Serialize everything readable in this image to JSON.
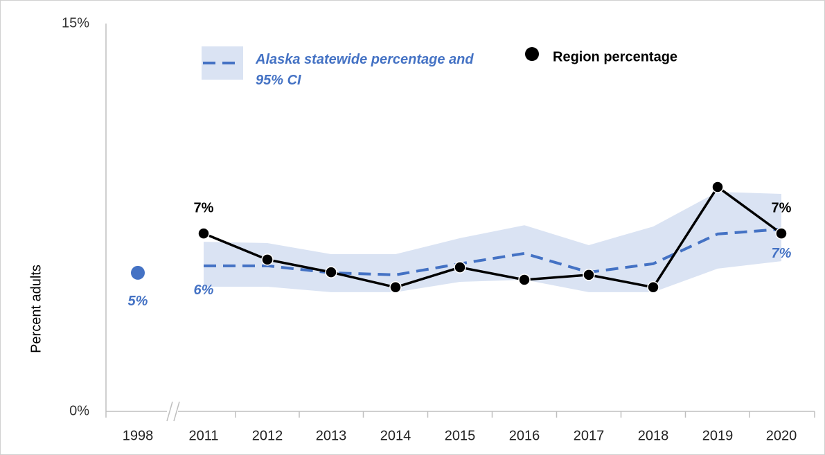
{
  "chart_data": {
    "type": "line",
    "y_axis_label": "Percent adults",
    "categories": [
      "1998",
      "2011",
      "2012",
      "2013",
      "2014",
      "2015",
      "2016",
      "2017",
      "2018",
      "2019",
      "2020"
    ],
    "ylim": [
      0,
      15
    ],
    "yticks": [
      {
        "value": 0,
        "label": "0%"
      },
      {
        "value": 15,
        "label": "15%"
      }
    ],
    "axis_break": true,
    "baseline": {
      "value": 5.36,
      "value_label": "5%",
      "color": "#4472c4"
    },
    "series": [
      {
        "name": "Region percentage",
        "color": "#000000",
        "values": [
          null,
          6.88,
          5.87,
          5.38,
          4.8,
          5.57,
          5.09,
          5.28,
          4.8,
          8.68,
          6.88
        ],
        "value_labels": [
          null,
          "7%",
          null,
          null,
          null,
          null,
          null,
          null,
          null,
          null,
          "7%"
        ]
      },
      {
        "name": "Alaska statewide percentage and 95% CI",
        "color": "#4472c4",
        "band_color": "#dae3f3",
        "dashed": true,
        "values": [
          null,
          5.63,
          5.63,
          5.36,
          5.28,
          5.71,
          6.11,
          5.38,
          5.71,
          6.86,
          7.05
        ],
        "ci_upper": [
          null,
          6.56,
          6.51,
          6.08,
          6.08,
          6.7,
          7.2,
          6.43,
          7.15,
          8.49,
          8.41
        ],
        "ci_lower": [
          null,
          4.82,
          4.82,
          4.61,
          4.61,
          5.01,
          5.09,
          4.61,
          4.61,
          5.52,
          5.81
        ],
        "value_labels": [
          null,
          "6%",
          null,
          null,
          null,
          null,
          null,
          null,
          null,
          null,
          "7%"
        ]
      }
    ]
  }
}
